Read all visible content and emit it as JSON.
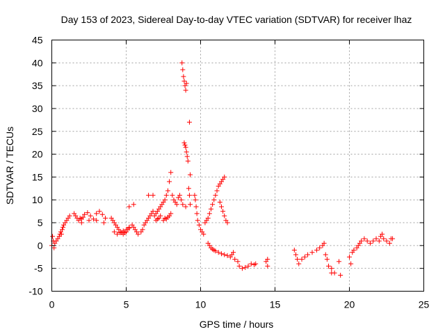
{
  "chart_data": {
    "type": "scatter",
    "title": "Day 153 of 2023, Sidereal Day-to-day VTEC variation (SDTVAR) for receiver lhaz",
    "xlabel": "GPS time / hours",
    "ylabel": "SDTVAR / TECUs",
    "xlim": [
      0,
      25
    ],
    "ylim": [
      -10,
      45
    ],
    "xticks": [
      "0",
      "5",
      "10",
      "15",
      "20",
      "25"
    ],
    "yticks": [
      "-10",
      "-5",
      "0",
      "5",
      "10",
      "15",
      "20",
      "25",
      "30",
      "35",
      "40",
      "45"
    ],
    "grid": true,
    "marker": "+",
    "colors": {
      "points": "#ff0000",
      "grid": "#a0a0a0",
      "axes": "#000000"
    },
    "series": [
      {
        "name": "SDTVAR",
        "x": [
          0.0,
          0.05,
          0.1,
          0.15,
          0.2,
          0.3,
          0.4,
          0.5,
          0.55,
          0.6,
          0.65,
          0.7,
          0.75,
          0.8,
          0.9,
          1.0,
          1.1,
          1.2,
          1.5,
          1.6,
          1.7,
          1.8,
          1.9,
          2.0,
          2.1,
          2.2,
          2.4,
          2.6,
          2.8,
          3.0,
          3.2,
          3.4,
          3.6,
          2.0,
          2.5,
          3.0,
          3.5,
          4.0,
          4.1,
          4.2,
          4.3,
          4.4,
          4.5,
          4.6,
          4.7,
          4.8,
          4.9,
          5.0,
          5.1,
          5.2,
          5.4,
          4.2,
          4.4,
          4.6,
          4.8,
          5.0,
          5.2,
          5.5,
          5.5,
          5.6,
          5.7,
          5.8,
          6.0,
          6.1,
          6.2,
          6.3,
          6.4,
          6.5,
          6.6,
          6.7,
          6.8,
          6.9,
          7.0,
          7.1,
          7.2,
          7.3,
          5.2,
          6.5,
          6.8,
          7.0,
          7.1,
          7.2,
          7.3,
          7.4,
          7.5,
          7.6,
          7.7,
          7.8,
          7.9,
          8.0,
          8.1,
          8.2,
          8.3,
          8.4,
          8.5,
          8.6,
          8.7,
          8.8,
          9.0,
          7.5,
          7.6,
          7.7,
          7.8,
          7.9,
          8.0,
          8.75,
          8.8,
          8.85,
          8.9,
          8.95,
          9.0,
          9.05,
          8.9,
          8.95,
          9.0,
          9.05,
          9.1,
          9.15,
          9.2,
          9.25,
          9.3,
          9.25,
          9.3,
          9.6,
          9.65,
          9.7,
          9.75,
          9.8,
          9.9,
          10.0,
          10.1,
          10.2,
          10.3,
          10.4,
          10.5,
          10.6,
          10.7,
          10.8,
          10.9,
          11.0,
          11.1,
          11.2,
          11.3,
          11.4,
          11.5,
          11.6,
          11.3,
          11.4,
          11.5,
          11.6,
          11.7,
          11.8,
          10.5,
          10.6,
          10.7,
          10.8,
          10.9,
          11.0,
          11.2,
          11.4,
          11.6,
          11.8,
          12.0,
          12.1,
          12.2,
          12.3,
          12.5,
          12.6,
          12.8,
          13.0,
          13.2,
          13.4,
          13.6,
          13.7,
          14.4,
          14.5,
          14.5,
          16.3,
          16.4,
          16.5,
          16.6,
          16.8,
          17.0,
          17.2,
          17.5,
          17.8,
          18.0,
          18.2,
          18.3,
          18.4,
          18.5,
          18.6,
          18.8,
          18.8,
          19.0,
          19.3,
          19.4,
          20.0,
          20.1,
          20.2,
          20.3,
          20.5,
          20.6,
          20.7,
          20.8,
          21.0,
          21.2,
          21.4,
          21.6,
          21.8,
          22.0,
          22.1,
          22.2,
          22.3,
          22.5,
          22.7,
          22.8,
          22.9
        ],
        "y": [
          0.0,
          2.0,
          1.0,
          -0.5,
          0.5,
          1.0,
          1.5,
          2.0,
          2.5,
          3.0,
          2.5,
          3.5,
          4.0,
          4.5,
          5.0,
          5.5,
          6.0,
          6.5,
          7.0,
          6.5,
          6.0,
          5.5,
          6.0,
          5.8,
          6.2,
          6.8,
          7.2,
          6.5,
          5.8,
          7.0,
          7.5,
          6.8,
          6.0,
          5.0,
          5.5,
          5.5,
          5.0,
          6.0,
          5.5,
          5.0,
          4.5,
          4.0,
          3.5,
          3.0,
          2.8,
          2.5,
          2.8,
          3.0,
          3.5,
          4.0,
          4.5,
          3.0,
          2.5,
          2.8,
          3.2,
          3.5,
          3.8,
          4.0,
          9.0,
          3.5,
          3.0,
          2.5,
          3.0,
          3.5,
          4.5,
          5.0,
          5.5,
          6.0,
          6.5,
          7.0,
          7.5,
          6.5,
          5.5,
          5.8,
          6.0,
          6.5,
          8.5,
          11.0,
          11.0,
          7.0,
          7.5,
          8.0,
          8.5,
          9.0,
          9.5,
          10.0,
          11.0,
          12.0,
          14.0,
          16.0,
          11.0,
          10.0,
          9.5,
          9.0,
          10.5,
          11.0,
          10.0,
          9.0,
          8.5,
          5.5,
          6.0,
          5.8,
          6.2,
          6.5,
          7.0,
          40.0,
          38.5,
          37.0,
          36.0,
          35.0,
          34.0,
          35.5,
          22.5,
          22.0,
          21.5,
          20.5,
          19.5,
          18.5,
          12.5,
          11.0,
          9.0,
          27.0,
          15.5,
          11.0,
          10.0,
          8.5,
          7.0,
          5.5,
          4.5,
          3.5,
          3.0,
          2.5,
          5.0,
          5.5,
          6.0,
          7.0,
          8.0,
          9.0,
          10.0,
          11.0,
          12.0,
          13.0,
          13.5,
          14.0,
          14.5,
          15.0,
          9.5,
          8.5,
          7.5,
          6.5,
          5.5,
          5.0,
          0.5,
          0.0,
          -0.5,
          -0.8,
          -1.0,
          -1.2,
          -1.5,
          -1.8,
          -2.0,
          -2.2,
          -2.5,
          -2.0,
          -1.5,
          -3.0,
          -3.5,
          -4.5,
          -5.0,
          -4.8,
          -4.5,
          -4.0,
          -4.2,
          -4.0,
          -3.5,
          -3.0,
          -4.5,
          -1.0,
          -2.0,
          -3.0,
          -4.0,
          -3.0,
          -2.5,
          -2.0,
          -1.5,
          -1.0,
          -0.5,
          0.0,
          0.5,
          -2.0,
          -3.0,
          -4.5,
          -5.0,
          -6.0,
          -6.0,
          -3.5,
          -6.5,
          -2.5,
          -4.0,
          -1.5,
          -1.0,
          -0.5,
          0.0,
          0.5,
          1.0,
          1.5,
          1.0,
          0.5,
          1.0,
          1.5,
          1.0,
          2.0,
          2.5,
          1.5,
          1.0,
          0.5,
          1.5,
          1.5
        ]
      }
    ]
  }
}
